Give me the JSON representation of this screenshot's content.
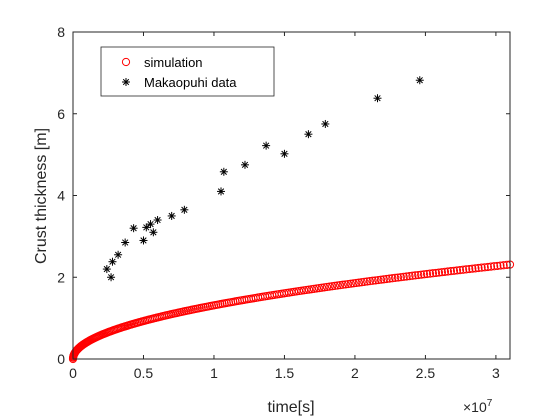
{
  "chart_data": {
    "type": "scatter",
    "xlabel": "time[s]",
    "ylabel": "Crust thickness [m]",
    "x_exponent_label": "×10",
    "x_exponent_power": "7",
    "xlim": [
      0,
      3.1
    ],
    "ylim": [
      0,
      8
    ],
    "x_ticks": [
      0,
      0.5,
      1,
      1.5,
      2,
      2.5,
      3
    ],
    "x_tick_labels": [
      "0",
      "0.5",
      "1",
      "1.5",
      "2",
      "2.5",
      "3"
    ],
    "y_ticks": [
      0,
      2,
      4,
      6,
      8
    ],
    "y_tick_labels": [
      "0",
      "2",
      "4",
      "6",
      "8"
    ],
    "grid": false,
    "legend_placement": "top-left",
    "series": [
      {
        "name": "simulation",
        "marker": "open-circle",
        "color": "#ff0000",
        "curve": {
          "model": "power",
          "coefficient": 1.3125,
          "exponent": 0.5,
          "x_max": 3.1,
          "points": 220
        }
      },
      {
        "name": "Makaopuhi data",
        "marker": "asterisk",
        "color": "#000000",
        "x": [
          0.24,
          0.27,
          0.28,
          0.32,
          0.37,
          0.43,
          0.5,
          0.52,
          0.55,
          0.57,
          0.6,
          0.7,
          0.79,
          1.05,
          1.07,
          1.22,
          1.37,
          1.5,
          1.67,
          1.79,
          2.16,
          2.46
        ],
        "y": [
          2.2,
          2.0,
          2.38,
          2.55,
          2.85,
          3.2,
          2.9,
          3.22,
          3.3,
          3.1,
          3.4,
          3.5,
          3.65,
          4.1,
          4.58,
          4.75,
          5.22,
          5.02,
          5.5,
          5.75,
          6.38,
          6.82
        ]
      }
    ]
  }
}
